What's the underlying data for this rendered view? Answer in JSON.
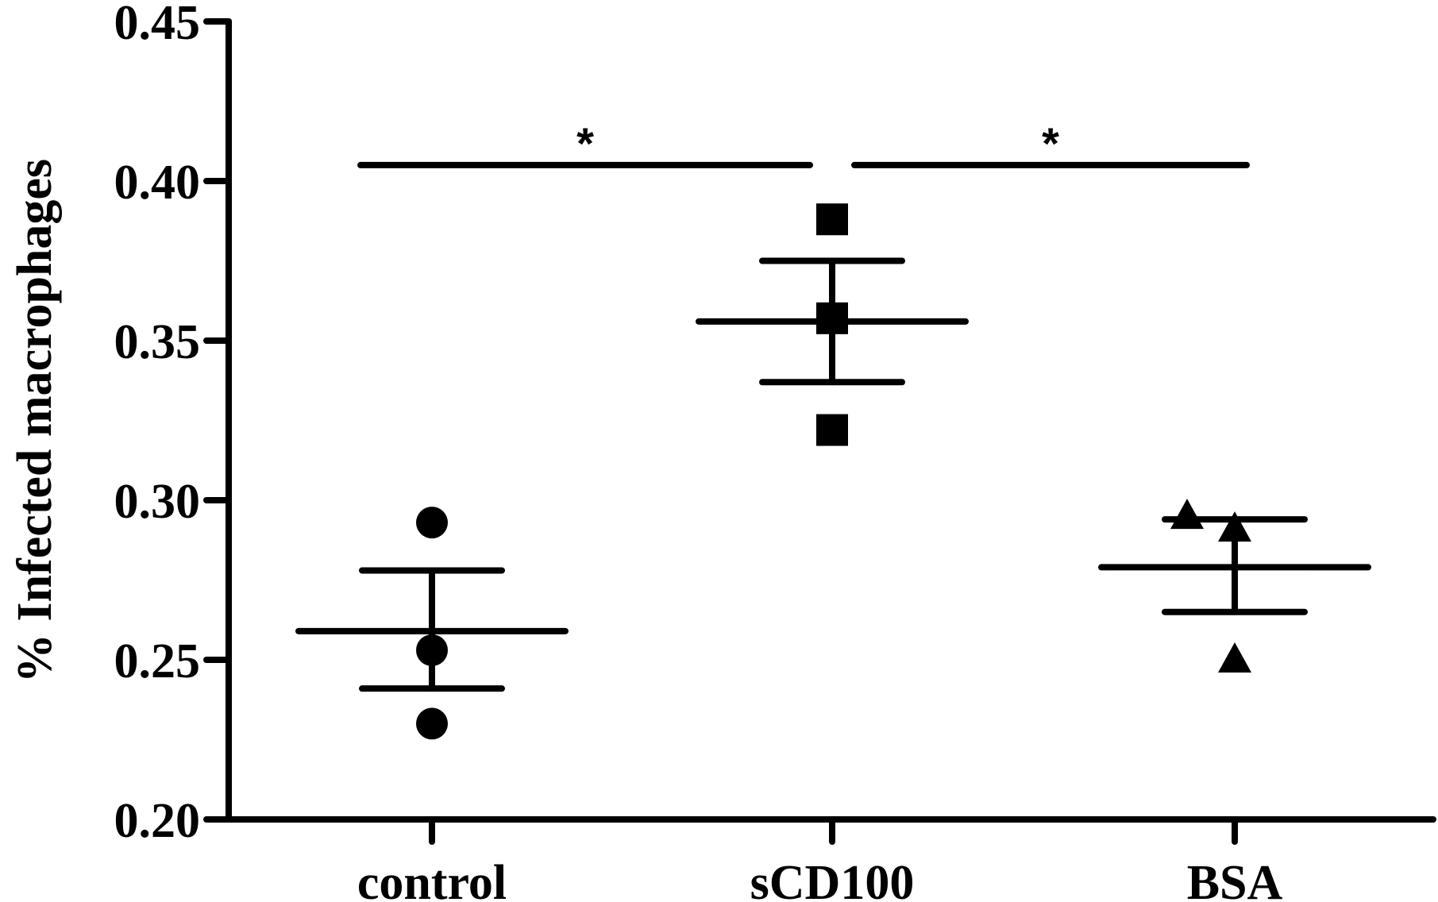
{
  "chart_data": {
    "type": "scatter",
    "ylabel": "% Infected macrophages",
    "xlabel": "",
    "ylim": [
      0.2,
      0.45
    ],
    "yticks": [
      "0.20",
      "0.25",
      "0.30",
      "0.35",
      "0.40",
      "0.45"
    ],
    "categories": [
      "control",
      "sCD100",
      "BSA"
    ],
    "grid": false,
    "legend": "none",
    "groups": [
      {
        "category": "control",
        "marker": "circle",
        "points": [
          0.293,
          0.253,
          0.23
        ],
        "mean": 0.259,
        "sem_low": 0.241,
        "sem_high": 0.278
      },
      {
        "category": "sCD100",
        "marker": "square",
        "points": [
          0.388,
          0.357,
          0.322
        ],
        "mean": 0.356,
        "sem_low": 0.337,
        "sem_high": 0.375
      },
      {
        "category": "BSA",
        "marker": "triangle",
        "points": [
          0.295,
          0.291,
          0.25
        ],
        "mean": 0.279,
        "sem_low": 0.265,
        "sem_high": 0.294
      }
    ],
    "significance": [
      {
        "from": "control",
        "to": "sCD100",
        "label": "*",
        "y": 0.405
      },
      {
        "from": "sCD100",
        "to": "BSA",
        "label": "*",
        "y": 0.405
      }
    ],
    "colors": {
      "marks": "#000000",
      "background": "#ffffff"
    }
  }
}
